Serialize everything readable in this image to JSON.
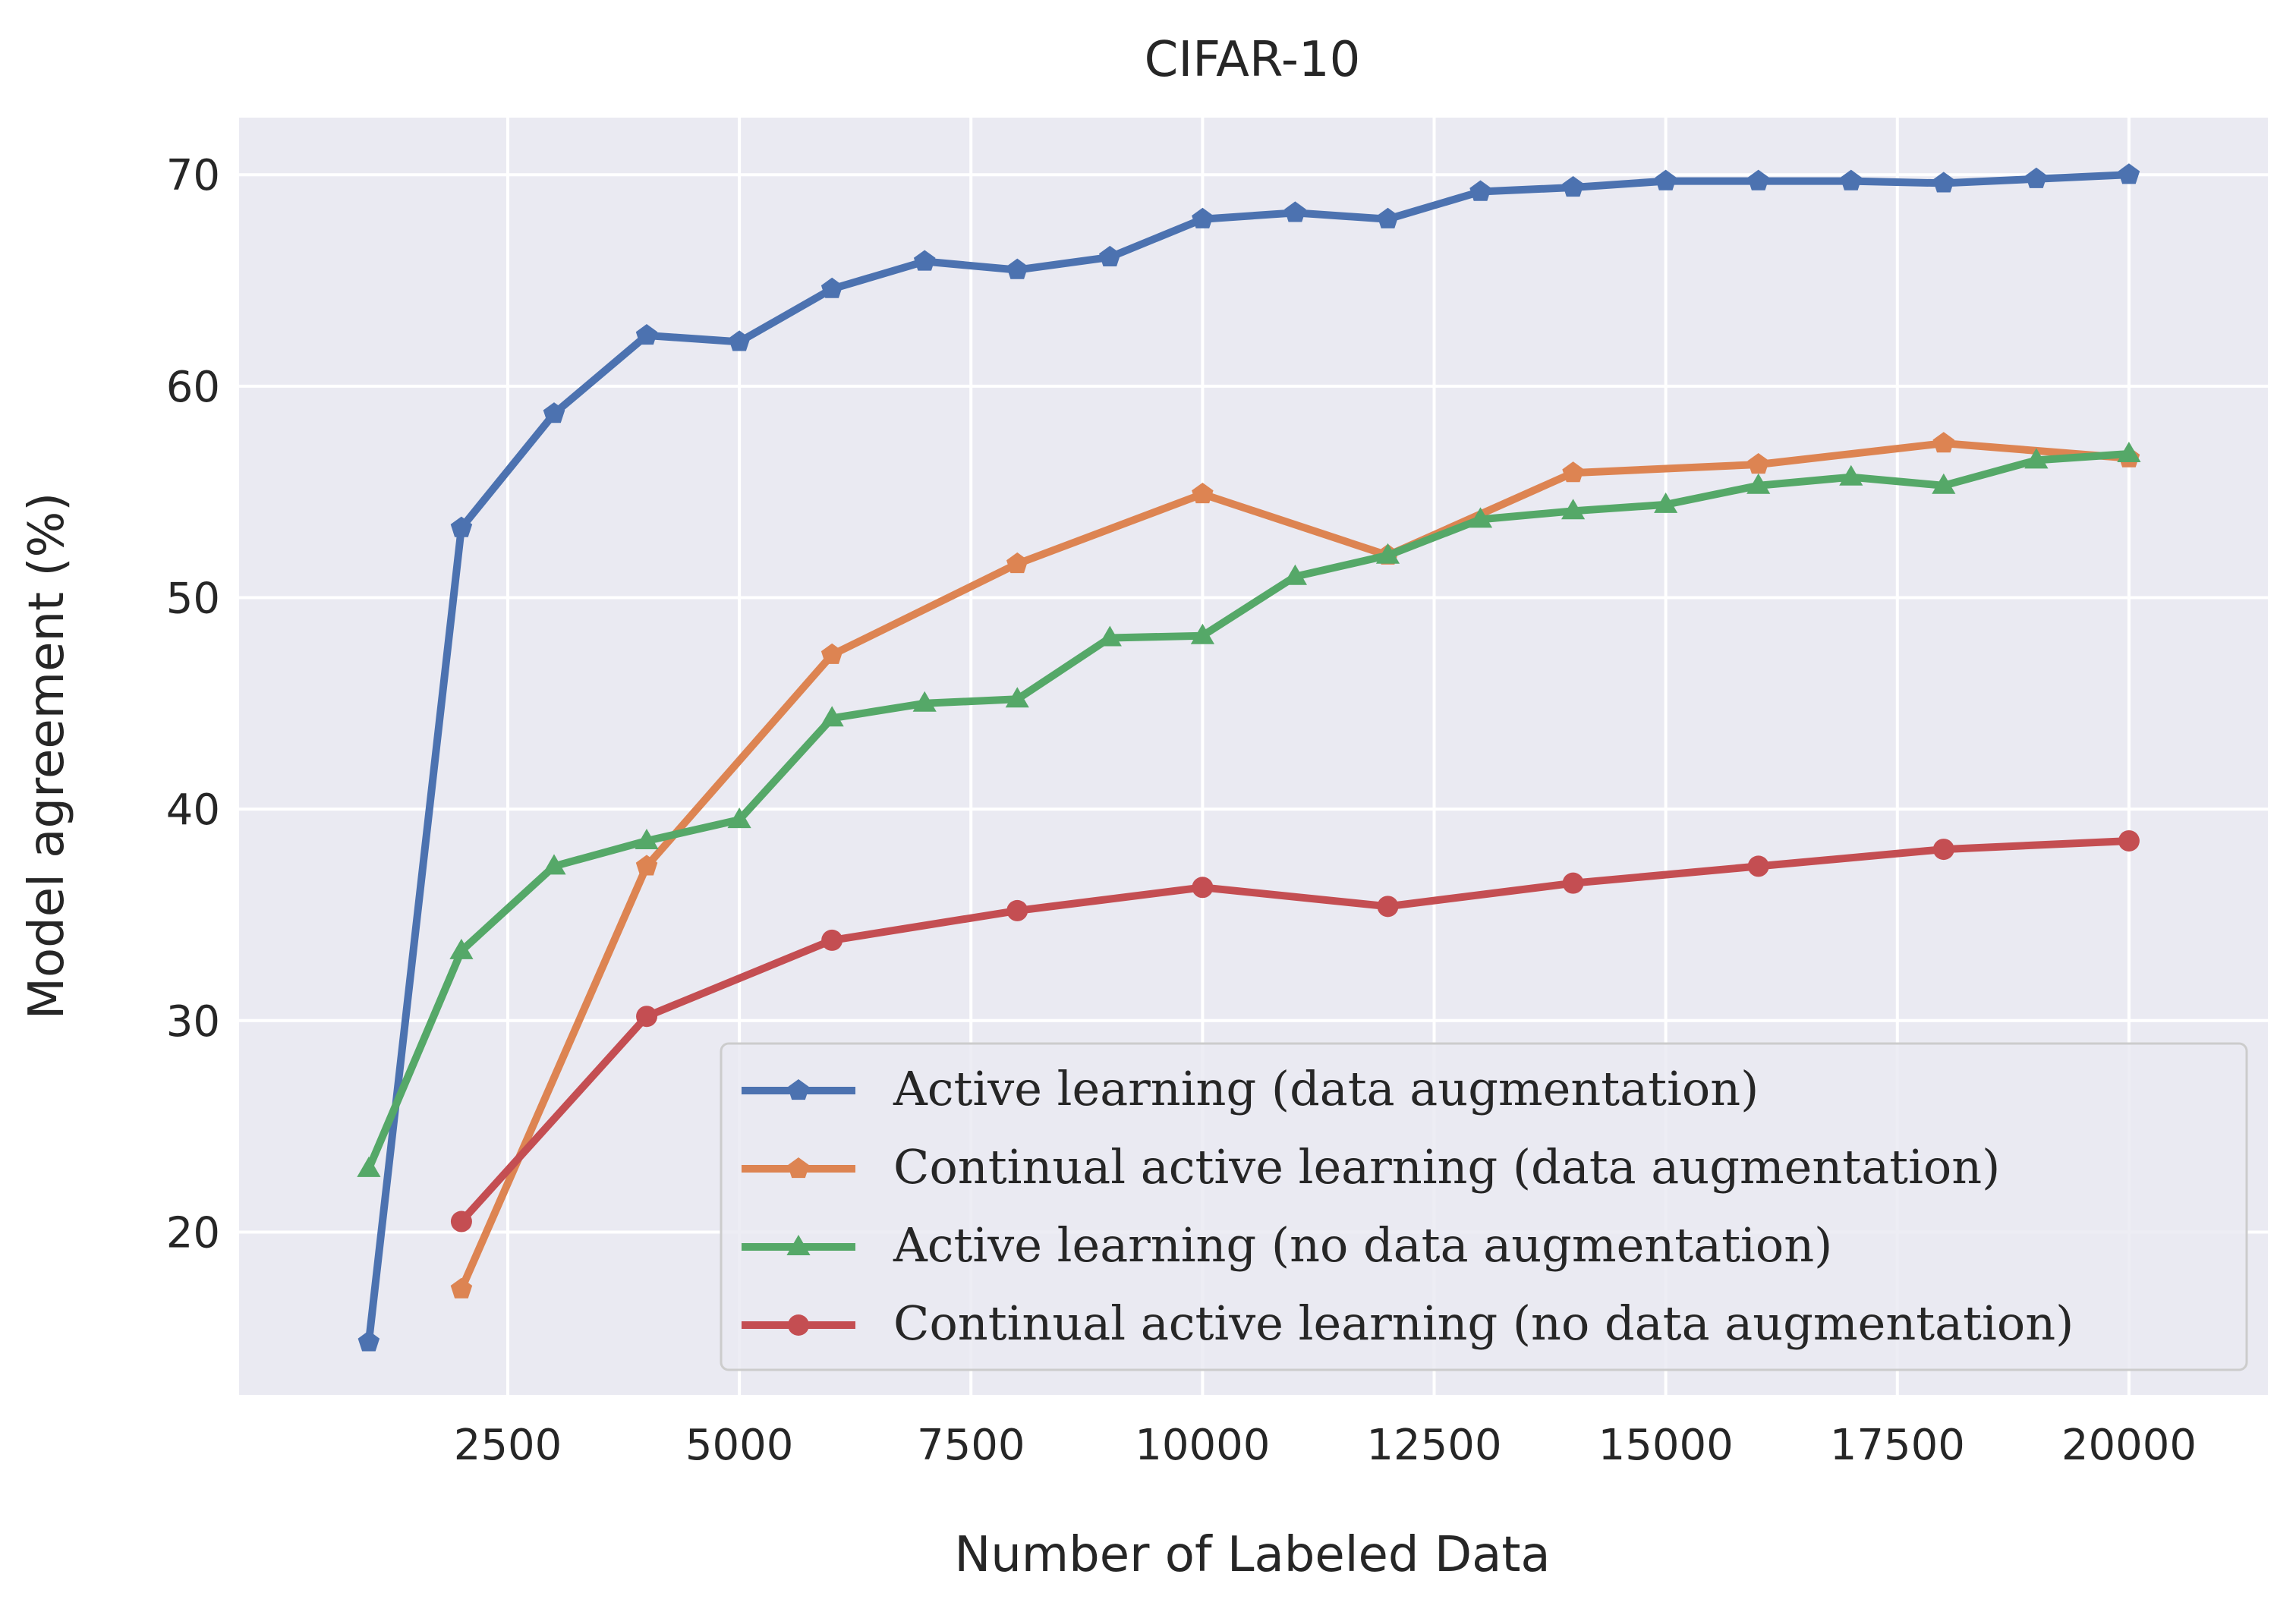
{
  "chart_data": {
    "type": "line",
    "title": "CIFAR-10",
    "xlabel": "Number of Labeled Data",
    "ylabel": "Model agreement (%)",
    "xlim": [
      -400,
      21500
    ],
    "ylim": [
      12.3,
      72.7
    ],
    "xticks": [
      2500,
      5000,
      7500,
      10000,
      12500,
      15000,
      17500,
      20000
    ],
    "yticks": [
      20,
      30,
      40,
      50,
      60,
      70
    ],
    "grid": true,
    "background": "#eaeaf2",
    "legend_position": "lower-right",
    "series": [
      {
        "name": "Active learning (data augmentation)",
        "color": "#4c72b0",
        "marker": "pentagon",
        "x": [
          1000,
          2000,
          3000,
          4000,
          5000,
          6000,
          7000,
          8000,
          9000,
          10000,
          11000,
          12000,
          13000,
          14000,
          15000,
          16000,
          17000,
          18000,
          19000,
          20000
        ],
        "y": [
          14.8,
          53.3,
          58.7,
          62.4,
          62.1,
          64.6,
          65.9,
          65.5,
          66.1,
          67.9,
          68.2,
          67.9,
          69.2,
          69.4,
          69.7,
          69.7,
          69.7,
          69.6,
          69.8,
          70.0
        ]
      },
      {
        "name": "Continual active learning (data augmentation)",
        "color": "#dd8452",
        "marker": "pentagon",
        "x": [
          2000,
          4000,
          6000,
          8000,
          10000,
          12000,
          14000,
          16000,
          18000,
          20000
        ],
        "y": [
          17.3,
          37.3,
          47.3,
          51.6,
          54.9,
          52.0,
          55.9,
          56.3,
          57.3,
          56.6
        ]
      },
      {
        "name": "Active learning (no data augmentation)",
        "color": "#55a868",
        "marker": "triangle",
        "x": [
          1000,
          2000,
          3000,
          4000,
          5000,
          6000,
          7000,
          8000,
          9000,
          10000,
          11000,
          12000,
          13000,
          14000,
          15000,
          16000,
          17000,
          18000,
          19000,
          20000
        ],
        "y": [
          23.0,
          33.3,
          37.3,
          38.5,
          39.5,
          44.3,
          45.0,
          45.2,
          48.1,
          48.2,
          51.0,
          52.0,
          53.7,
          54.1,
          54.4,
          55.3,
          55.7,
          55.3,
          56.5,
          56.8
        ]
      },
      {
        "name": "Continual active learning (no data augmentation)",
        "color": "#c44e52",
        "marker": "circle",
        "x": [
          2000,
          4000,
          6000,
          8000,
          10000,
          12000,
          14000,
          16000,
          18000,
          20000
        ],
        "y": [
          20.5,
          30.2,
          33.8,
          35.2,
          36.3,
          35.4,
          36.5,
          37.3,
          38.1,
          38.5
        ]
      }
    ]
  }
}
